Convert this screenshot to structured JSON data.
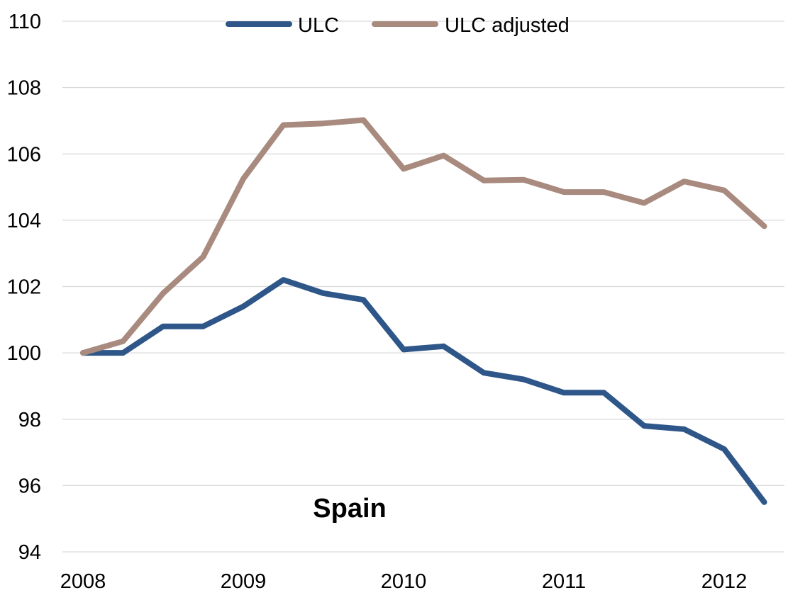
{
  "chart_data": {
    "type": "line",
    "title": "",
    "xlabel": "",
    "ylabel": "",
    "ylim": [
      94,
      110
    ],
    "ytick_step": 2,
    "yticks": [
      "94",
      "96",
      "98",
      "100",
      "102",
      "104",
      "106",
      "108",
      "110"
    ],
    "xlim": [
      0,
      18
    ],
    "xtick_labels": [
      {
        "label": "2008",
        "x": 0
      },
      {
        "label": "2009",
        "x": 4
      },
      {
        "label": "2010",
        "x": 8
      },
      {
        "label": "2011",
        "x": 12
      },
      {
        "label": "2012",
        "x": 16
      }
    ],
    "grid": true,
    "legend_position": "top",
    "annotation": "Spain",
    "x": [
      0,
      1,
      2,
      3,
      4,
      5,
      6,
      7,
      8,
      9,
      10,
      11,
      12,
      13,
      14,
      15,
      16,
      17
    ],
    "series": [
      {
        "name": "ULC",
        "color": "#2e5689",
        "values": [
          100.0,
          100.0,
          100.8,
          100.8,
          101.4,
          102.2,
          101.8,
          101.6,
          100.1,
          100.2,
          99.4,
          99.2,
          98.8,
          98.8,
          97.8,
          97.7,
          97.1,
          95.5
        ]
      },
      {
        "name": "ULC adjusted",
        "color": "#a88a7e",
        "values": [
          100.0,
          100.35,
          101.8,
          102.9,
          105.25,
          106.87,
          106.92,
          107.02,
          105.55,
          105.95,
          105.2,
          105.22,
          104.85,
          104.85,
          104.52,
          105.17,
          104.9,
          103.82
        ]
      }
    ]
  }
}
